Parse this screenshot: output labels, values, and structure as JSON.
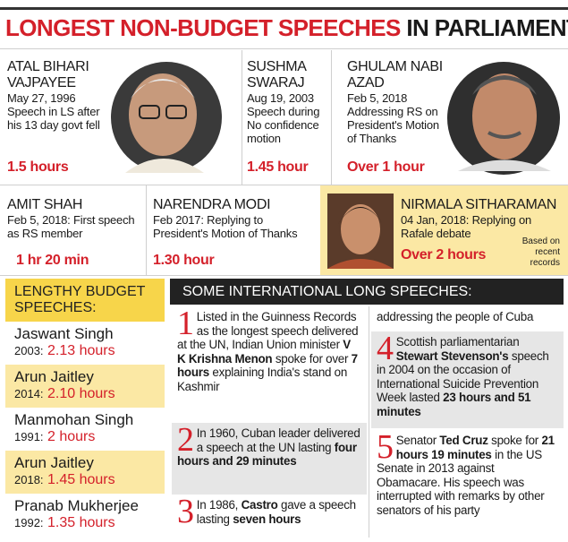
{
  "title": {
    "main": "LONGEST NON-BUDGET SPEECHES",
    "tail": "IN PARLIAMENT"
  },
  "top_row": [
    {
      "name": "ATAL BIHARI VAJPAYEE",
      "date": "May 27, 1996",
      "desc": "Speech in LS after his 13 day govt fell",
      "duration": "1.5 hours"
    },
    {
      "name": "SUSHMA SWARAJ",
      "date": "Aug 19, 2003",
      "desc": "Speech during No confidence motion",
      "duration": "1.45 hour"
    },
    {
      "name": "GHULAM NABI AZAD",
      "date": "Feb 5, 2018",
      "desc": "Addressing RS on President's Motion of Thanks",
      "duration": "Over 1 hour"
    }
  ],
  "mid_row": [
    {
      "name": "AMIT SHAH",
      "desc": "Feb 5, 2018: First speech as RS member",
      "duration": "1 hr 20 min"
    },
    {
      "name": "NARENDRA MODI",
      "desc": "Feb 2017: Replying to President's Motion of Thanks",
      "duration": "1.30 hour"
    },
    {
      "name": "NIRMALA SITHARAMAN",
      "desc": "04 Jan, 2018: Replying on Rafale debate",
      "duration": "Over 2 hours"
    }
  ],
  "note": "Based on recent records",
  "budget": {
    "heading": "LENGTHY BUDGET SPEECHES:",
    "items": [
      {
        "name": "Jaswant Singh",
        "year": "2003:",
        "duration": "2.13 hours"
      },
      {
        "name": "Arun Jaitley",
        "year": "2014:",
        "duration": "2.10 hours"
      },
      {
        "name": "Manmohan Singh",
        "year": "1991:",
        "duration": "2 hours"
      },
      {
        "name": "Arun Jaitley",
        "year": "2018:",
        "duration": "1.45 hours"
      },
      {
        "name": "Pranab Mukherjee",
        "year": "1992:",
        "duration": "1.35 hours"
      }
    ]
  },
  "international": {
    "heading": "SOME INTERNATIONAL LONG SPEECHES:",
    "items": [
      {
        "number": "1",
        "segments": [
          {
            "text": "Listed in the Guinness Records as the longest speech delivered at the UN, Indian Union minister "
          },
          {
            "text": "V K Krishna Menon",
            "bold": true
          },
          {
            "text": " spoke for over "
          },
          {
            "text": "7 hours",
            "bold": true
          },
          {
            "text": " explaining India's stand on Kashmir"
          }
        ]
      },
      {
        "number": "2",
        "segments": [
          {
            "text": "In 1960, Cuban leader delivered a speech at the UN lasting "
          },
          {
            "text": "four hours and 29 minutes",
            "bold": true
          }
        ]
      },
      {
        "number": "3",
        "segments": [
          {
            "text": "In 1986, "
          },
          {
            "text": "Castro",
            "bold": true
          },
          {
            "text": " gave a speech lasting "
          },
          {
            "text": "seven hours",
            "bold": true
          }
        ],
        "continuation": "addressing the people of Cuba"
      },
      {
        "number": "4",
        "segments": [
          {
            "text": "Scottish parliamentarian "
          },
          {
            "text": "Stewart Stevenson's",
            "bold": true
          },
          {
            "text": " speech in 2004 on the occasion of International Suicide Prevention Week lasted "
          },
          {
            "text": "23 hours and 51 minutes",
            "bold": true
          }
        ]
      },
      {
        "number": "5",
        "segments": [
          {
            "text": "Senator "
          },
          {
            "text": "Ted Cruz",
            "bold": true
          },
          {
            "text": " spoke for "
          },
          {
            "text": "21 hours 19 minutes",
            "bold": true
          },
          {
            "text": " in the US Senate in 2013 against Obamacare. His speech was interrupted with remarks by other senators of his party"
          }
        ]
      }
    ]
  }
}
